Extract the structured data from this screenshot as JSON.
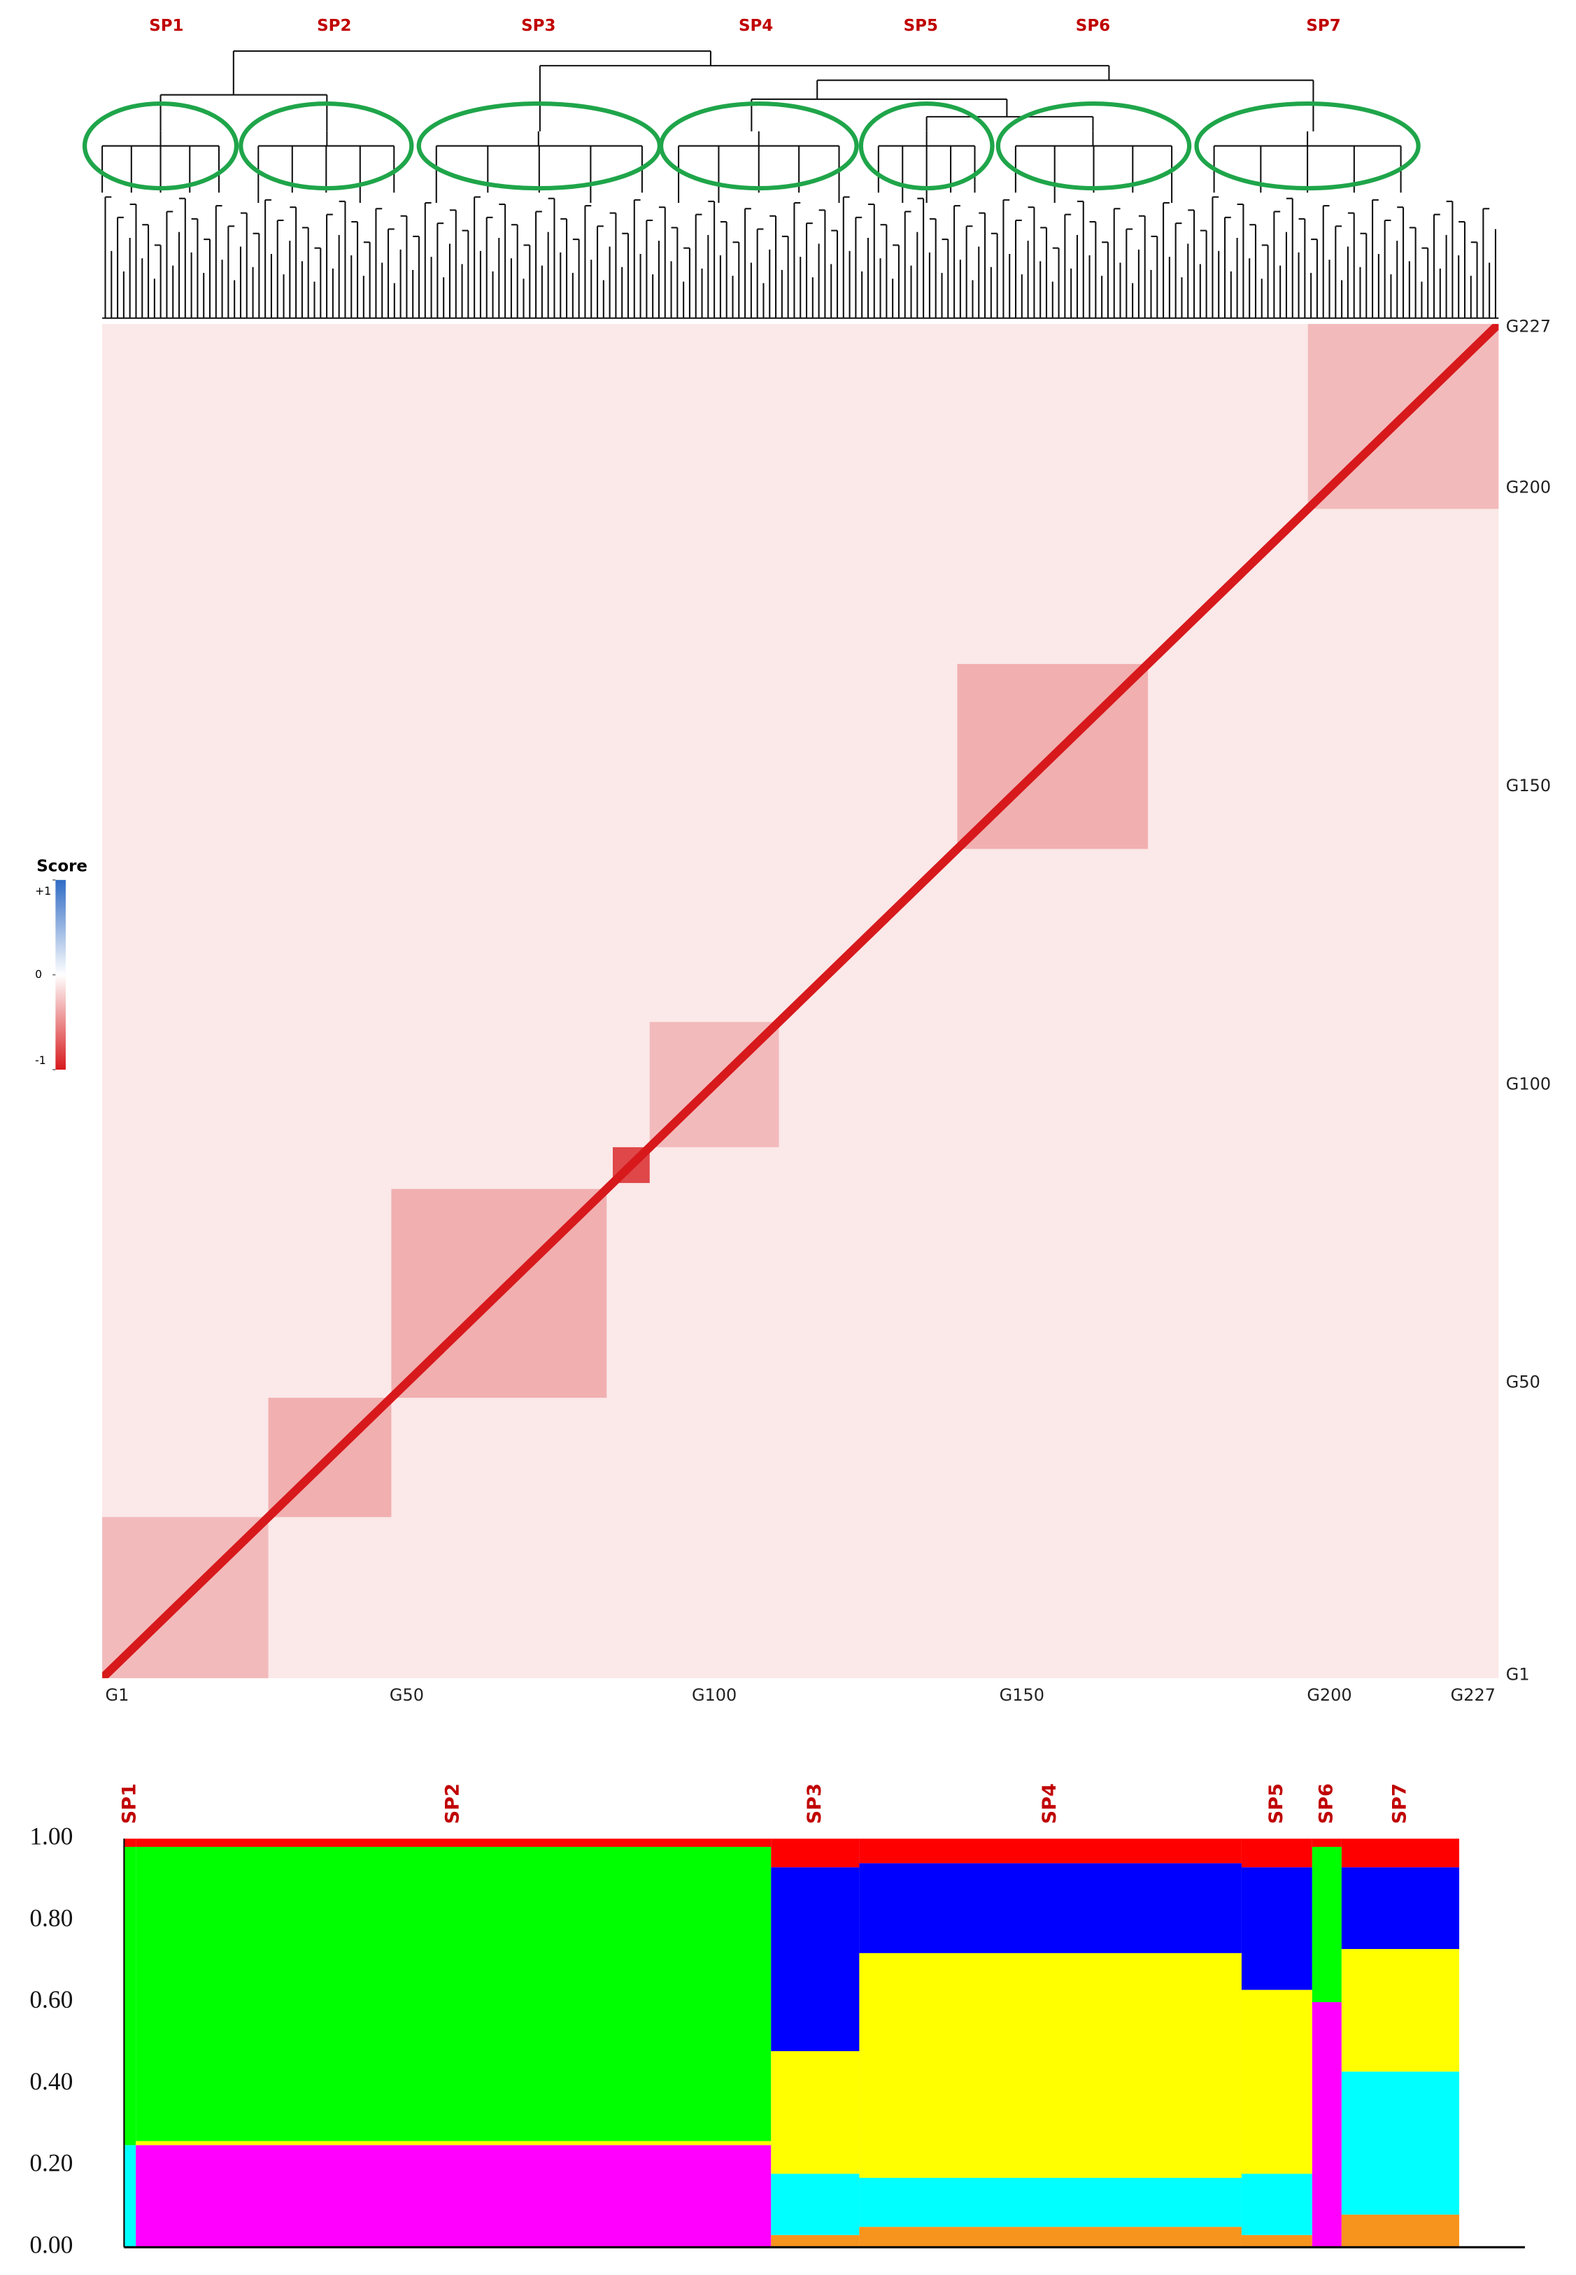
{
  "chart_data": [
    {
      "type": "dendrogram",
      "clusters": [
        "SP1",
        "SP2",
        "SP3",
        "SP4",
        "SP5",
        "SP6",
        "SP7"
      ],
      "label_color": "#c00000",
      "ellipse_color": "#1fa54a",
      "line_color": "#111111"
    },
    {
      "type": "heatmap",
      "xlim": [
        1,
        227
      ],
      "ylim": [
        1,
        227
      ],
      "xticks": [
        {
          "value": 1,
          "label": "G1"
        },
        {
          "value": 50,
          "label": "G50"
        },
        {
          "value": 100,
          "label": "G100"
        },
        {
          "value": 150,
          "label": "G150"
        },
        {
          "value": 200,
          "label": "G200"
        },
        {
          "value": 227,
          "label": "G227"
        }
      ],
      "yticks": [
        {
          "value": 227,
          "label": "G227"
        },
        {
          "value": 200,
          "label": "G200"
        },
        {
          "value": 150,
          "label": "G150"
        },
        {
          "value": 100,
          "label": "G100"
        },
        {
          "value": 50,
          "label": "G50"
        },
        {
          "value": 1,
          "label": "G1"
        }
      ],
      "background": -0.1,
      "diagonal": -1,
      "blocks": [
        {
          "start": 1,
          "end": 27,
          "score": -0.3
        },
        {
          "start": 28,
          "end": 47,
          "score": -0.35
        },
        {
          "start": 48,
          "end": 82,
          "score": -0.35
        },
        {
          "start": 84,
          "end": 89,
          "score": -0.8
        },
        {
          "start": 90,
          "end": 110,
          "score": -0.3
        },
        {
          "start": 140,
          "end": 170,
          "score": -0.35
        },
        {
          "start": 197,
          "end": 227,
          "score": -0.3
        }
      ],
      "colorbar": {
        "title": "Score",
        "ticks": [
          {
            "value": 1,
            "label": "+1"
          },
          0,
          -1
        ],
        "high_color": "#2f6bc4",
        "mid_color": "#ffffff",
        "low_color": "#d7191c"
      }
    },
    {
      "type": "stacked_bar",
      "categories": [
        "SP1",
        "SP2",
        "SP3",
        "SP4",
        "SP5",
        "SP6",
        "SP7"
      ],
      "sizes": [
        2,
        108,
        15,
        65,
        12,
        5,
        20
      ],
      "label_color": "#c00000",
      "ylim": [
        0,
        1
      ],
      "yticks": [
        {
          "value": 0,
          "label": "0.00"
        },
        {
          "value": 0.2,
          "label": "0.20"
        },
        {
          "value": 0.4,
          "label": "0.40"
        },
        {
          "value": 0.6,
          "label": "0.60"
        },
        {
          "value": 0.8,
          "label": "0.80"
        },
        {
          "value": 1,
          "label": "1.00"
        }
      ],
      "series": [
        {
          "color": "#f7941d",
          "values": [
            0,
            0,
            0.03,
            0.05,
            0.03,
            0,
            0.08
          ]
        },
        {
          "color": "#ff00ff",
          "values": [
            0,
            0.25,
            0,
            0,
            0,
            0.6,
            0
          ]
        },
        {
          "color": "#00ffff",
          "values": [
            0.25,
            0,
            0.15,
            0.12,
            0.15,
            0,
            0.35
          ]
        },
        {
          "color": "#ffff00",
          "values": [
            0,
            0.01,
            0.3,
            0.55,
            0.45,
            0,
            0.3
          ]
        },
        {
          "color": "#00ff00",
          "values": [
            0.73,
            0.72,
            0,
            0,
            0,
            0.38,
            0
          ]
        },
        {
          "color": "#0000ff",
          "values": [
            0,
            0,
            0.45,
            0.22,
            0.3,
            0,
            0.2
          ]
        },
        {
          "color": "#ff0000",
          "values": [
            0.02,
            0.02,
            0.07,
            0.06,
            0.07,
            0.02,
            0.07
          ]
        }
      ]
    }
  ]
}
